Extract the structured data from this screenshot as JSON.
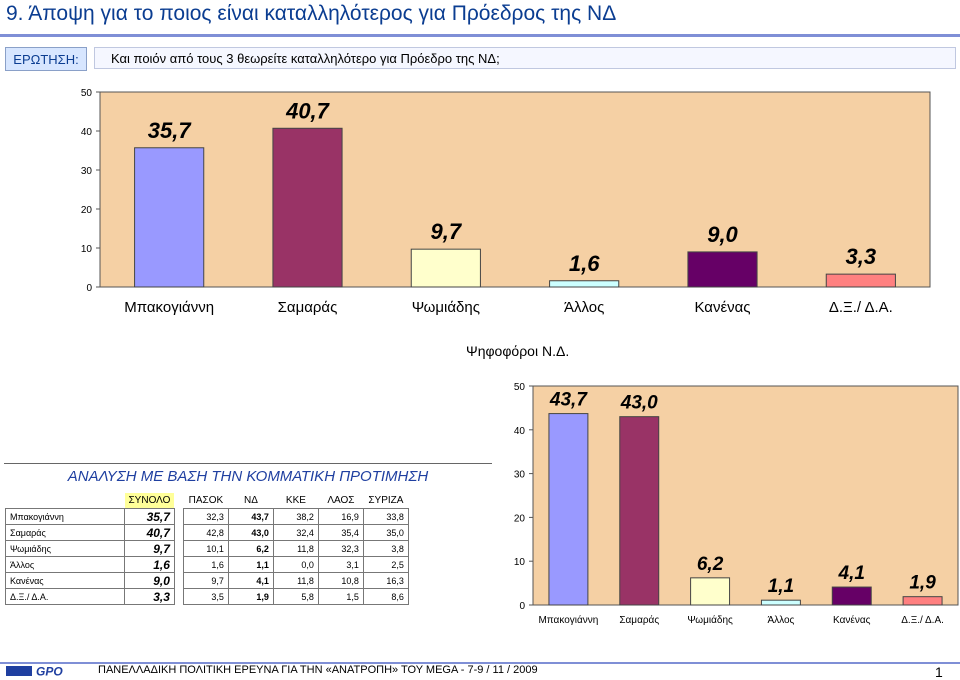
{
  "header": {
    "title": "9.  Άποψη για το ποιος είναι καταλληλότερος για Πρόεδρος της ΝΔ",
    "question_label": "ΕΡΩΤΗΣΗ:",
    "question_text": "Και ποιόν από τους 3 θεωρείτε καταλληλότερο για Πρόεδρο της ΝΔ;"
  },
  "chart_data": [
    {
      "type": "bar",
      "title": "",
      "categories": [
        "Μπακογιάννη",
        "Σαμαράς",
        "Ψωμιάδης",
        "Άλλος",
        "Κανένας",
        "Δ.Ξ./ Δ.Α."
      ],
      "values": [
        35.7,
        40.7,
        9.7,
        1.6,
        9.0,
        3.3
      ],
      "labels": [
        "35,7",
        "40,7",
        "9,7",
        "1,6",
        "9,0",
        "3,3"
      ],
      "colors": [
        "#9999ff",
        "#993366",
        "#ffffcc",
        "#ccffff",
        "#660066",
        "#ff8080"
      ],
      "ylim": [
        0,
        50
      ],
      "yticks": [
        0,
        10,
        20,
        30,
        40,
        50
      ],
      "grid": false,
      "background": "#f5d0a4"
    },
    {
      "type": "bar",
      "title": "Ψηφοφόροι Ν.Δ.",
      "categories": [
        "Μπακογιάννη",
        "Σαμαράς",
        "Ψωμιάδης",
        "Άλλος",
        "Κανένας",
        "Δ.Ξ./ Δ.Α."
      ],
      "values": [
        43.7,
        43.0,
        6.2,
        1.1,
        4.1,
        1.9
      ],
      "labels": [
        "43,7",
        "43,0",
        "6,2",
        "1,1",
        "4,1",
        "1,9"
      ],
      "colors": [
        "#9999ff",
        "#993366",
        "#ffffcc",
        "#ccffff",
        "#660066",
        "#ff8080"
      ],
      "ylim": [
        0,
        50
      ],
      "yticks": [
        0,
        10,
        20,
        30,
        40,
        50
      ],
      "grid": false,
      "background": "#f5d0a4"
    },
    {
      "type": "table",
      "title": "ΑΝΑΛΥΣΗ ΜΕ ΒΑΣΗ ΤΗΝ ΚΟΜΜΑΤΙΚΗ ΠΡΟΤΙΜΗΣΗ",
      "columns": [
        "ΣΥΝΟΛΟ",
        "ΠΑΣΟΚ",
        "ΝΔ",
        "ΚΚΕ",
        "ΛΑΟΣ",
        "ΣΥΡΙΖΑ"
      ],
      "rows": [
        {
          "name": "Μπακογιάννη",
          "values": [
            "35,7",
            "32,3",
            "43,7",
            "38,2",
            "16,9",
            "33,8"
          ]
        },
        {
          "name": "Σαμαράς",
          "values": [
            "40,7",
            "42,8",
            "43,0",
            "32,4",
            "35,4",
            "35,0"
          ]
        },
        {
          "name": "Ψωμιάδης",
          "values": [
            "9,7",
            "10,1",
            "6,2",
            "11,8",
            "32,3",
            "3,8"
          ]
        },
        {
          "name": "Άλλος",
          "values": [
            "1,6",
            "1,6",
            "1,1",
            "0,0",
            "3,1",
            "2,5"
          ]
        },
        {
          "name": "Κανένας",
          "values": [
            "9,0",
            "9,7",
            "4,1",
            "11,8",
            "10,8",
            "16,3"
          ]
        },
        {
          "name": "Δ.Ξ./ Δ.Α.",
          "values": [
            "3,3",
            "3,5",
            "1,9",
            "5,8",
            "1,5",
            "8,6"
          ]
        }
      ]
    }
  ],
  "footer": {
    "logo_text": "GPO",
    "text": "ΠΑΝΕΛΛΑΔΙΚΗ ΠΟΛΙΤΙΚΗ ΕΡΕΥΝΑ ΓΙΑ ΤΗΝ «ΑΝΑΤΡΟΠΗ» ΤΟΥ MEGA  -  7-9  / 11 / 2009",
    "page_number": "1"
  }
}
